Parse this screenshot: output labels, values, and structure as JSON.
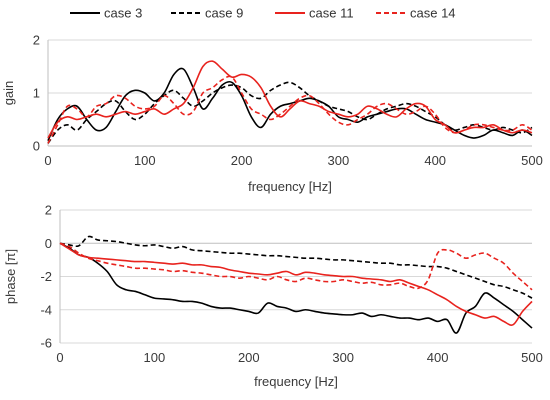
{
  "chart_data": [
    {
      "type": "line",
      "xlabel": "frequency [Hz]",
      "ylabel": "gain",
      "xlim": [
        0,
        500
      ],
      "ylim": [
        0,
        2
      ],
      "xticks": [
        0,
        100,
        200,
        300,
        400,
        500
      ],
      "yticks": [
        0,
        1,
        2
      ],
      "grid": "horizontal",
      "legend": "top",
      "series": [
        {
          "name": "case 3",
          "color": "#000000",
          "dash": "solid",
          "x": [
            0,
            10,
            20,
            30,
            40,
            50,
            60,
            70,
            80,
            90,
            100,
            110,
            120,
            130,
            140,
            150,
            160,
            170,
            180,
            190,
            200,
            210,
            220,
            230,
            240,
            250,
            260,
            270,
            280,
            290,
            300,
            310,
            320,
            330,
            340,
            350,
            360,
            370,
            380,
            390,
            400,
            410,
            420,
            430,
            440,
            450,
            460,
            470,
            480,
            490,
            500
          ],
          "y": [
            0.1,
            0.5,
            0.7,
            0.75,
            0.5,
            0.3,
            0.35,
            0.65,
            0.95,
            1.05,
            1.0,
            0.85,
            1.0,
            1.35,
            1.45,
            1.1,
            0.7,
            0.9,
            1.15,
            1.2,
            0.95,
            0.55,
            0.35,
            0.6,
            0.75,
            0.8,
            0.85,
            0.9,
            0.85,
            0.75,
            0.55,
            0.5,
            0.45,
            0.55,
            0.6,
            0.65,
            0.7,
            0.7,
            0.6,
            0.5,
            0.45,
            0.4,
            0.3,
            0.2,
            0.15,
            0.2,
            0.3,
            0.25,
            0.2,
            0.3,
            0.2
          ]
        },
        {
          "name": "case 9",
          "color": "#000000",
          "dash": "dashed",
          "x": [
            0,
            10,
            20,
            30,
            40,
            50,
            60,
            70,
            80,
            90,
            100,
            110,
            120,
            130,
            140,
            150,
            160,
            170,
            180,
            190,
            200,
            210,
            220,
            230,
            240,
            250,
            260,
            270,
            280,
            290,
            300,
            310,
            320,
            330,
            340,
            350,
            360,
            370,
            380,
            390,
            400,
            410,
            420,
            430,
            440,
            450,
            460,
            470,
            480,
            490,
            500
          ],
          "y": [
            0.05,
            0.3,
            0.4,
            0.3,
            0.5,
            0.65,
            0.8,
            0.85,
            0.65,
            0.5,
            0.6,
            0.8,
            0.95,
            1.05,
            0.9,
            0.75,
            0.85,
            1.0,
            1.1,
            1.15,
            1.1,
            0.95,
            0.9,
            1.05,
            1.15,
            1.2,
            1.1,
            0.95,
            0.85,
            0.75,
            0.7,
            0.65,
            0.55,
            0.5,
            0.6,
            0.7,
            0.75,
            0.8,
            0.75,
            0.65,
            0.55,
            0.4,
            0.3,
            0.35,
            0.4,
            0.35,
            0.3,
            0.35,
            0.3,
            0.25,
            0.35
          ]
        },
        {
          "name": "case 11",
          "color": "#e8231e",
          "dash": "solid",
          "x": [
            0,
            10,
            20,
            30,
            40,
            50,
            60,
            70,
            80,
            90,
            100,
            110,
            120,
            130,
            140,
            150,
            160,
            170,
            180,
            190,
            200,
            210,
            220,
            230,
            240,
            250,
            260,
            270,
            280,
            290,
            300,
            310,
            320,
            330,
            340,
            350,
            360,
            370,
            380,
            390,
            400,
            410,
            420,
            430,
            440,
            450,
            460,
            470,
            480,
            490,
            500
          ],
          "y": [
            0.15,
            0.45,
            0.55,
            0.5,
            0.55,
            0.6,
            0.55,
            0.6,
            0.65,
            0.6,
            0.65,
            0.7,
            0.6,
            0.7,
            0.8,
            1.1,
            1.5,
            1.6,
            1.45,
            1.3,
            1.35,
            1.3,
            1.1,
            0.75,
            0.55,
            0.7,
            0.85,
            0.8,
            0.75,
            0.65,
            0.6,
            0.55,
            0.6,
            0.75,
            0.7,
            0.6,
            0.55,
            0.7,
            0.8,
            0.75,
            0.5,
            0.4,
            0.25,
            0.3,
            0.35,
            0.35,
            0.4,
            0.3,
            0.25,
            0.3,
            0.25
          ]
        },
        {
          "name": "case 14",
          "color": "#e8231e",
          "dash": "dashed",
          "x": [
            0,
            10,
            20,
            30,
            40,
            50,
            60,
            70,
            80,
            90,
            100,
            110,
            120,
            130,
            140,
            150,
            160,
            170,
            180,
            190,
            200,
            210,
            220,
            230,
            240,
            250,
            260,
            270,
            280,
            290,
            300,
            310,
            320,
            330,
            340,
            350,
            360,
            370,
            380,
            390,
            400,
            410,
            420,
            430,
            440,
            450,
            460,
            470,
            480,
            490,
            500
          ],
          "y": [
            0.05,
            0.4,
            0.75,
            0.7,
            0.55,
            0.75,
            0.8,
            0.95,
            0.9,
            0.75,
            0.7,
            0.75,
            0.95,
            0.8,
            0.6,
            0.65,
            1.0,
            1.1,
            1.25,
            1.3,
            1.0,
            0.7,
            0.6,
            0.5,
            0.6,
            0.75,
            0.9,
            0.95,
            0.8,
            0.6,
            0.45,
            0.4,
            0.5,
            0.6,
            0.75,
            0.8,
            0.7,
            0.6,
            0.65,
            0.75,
            0.6,
            0.35,
            0.25,
            0.3,
            0.4,
            0.4,
            0.35,
            0.3,
            0.3,
            0.4,
            0.3
          ]
        }
      ]
    },
    {
      "type": "line",
      "xlabel": "frequency [Hz]",
      "ylabel": "phase [π]",
      "xlim": [
        0,
        500
      ],
      "ylim": [
        -6,
        2
      ],
      "xticks": [
        0,
        100,
        200,
        300,
        400,
        500
      ],
      "yticks": [
        -6,
        -4,
        -2,
        0,
        2
      ],
      "grid": "horizontal",
      "series": [
        {
          "name": "case 3",
          "color": "#000000",
          "dash": "solid",
          "x": [
            0,
            10,
            20,
            30,
            40,
            50,
            60,
            70,
            80,
            90,
            100,
            110,
            120,
            130,
            140,
            150,
            160,
            170,
            180,
            190,
            200,
            210,
            220,
            230,
            240,
            250,
            260,
            270,
            280,
            290,
            300,
            310,
            320,
            330,
            340,
            350,
            360,
            370,
            380,
            390,
            400,
            410,
            420,
            430,
            440,
            450,
            460,
            470,
            480,
            490,
            500
          ],
          "y": [
            0,
            -0.3,
            -0.7,
            -0.85,
            -1.2,
            -1.7,
            -2.5,
            -2.8,
            -2.9,
            -3.1,
            -3.3,
            -3.35,
            -3.4,
            -3.5,
            -3.5,
            -3.6,
            -3.8,
            -3.9,
            -3.9,
            -4.0,
            -4.1,
            -4.2,
            -3.6,
            -3.8,
            -3.9,
            -4.1,
            -4.0,
            -4.1,
            -4.2,
            -4.25,
            -4.3,
            -4.3,
            -4.2,
            -4.4,
            -4.3,
            -4.4,
            -4.5,
            -4.5,
            -4.6,
            -4.5,
            -4.7,
            -4.6,
            -5.4,
            -4.2,
            -3.8,
            -3.0,
            -3.3,
            -3.7,
            -4.1,
            -4.6,
            -5.1
          ]
        },
        {
          "name": "case 9",
          "color": "#000000",
          "dash": "dashed",
          "x": [
            0,
            10,
            20,
            30,
            40,
            50,
            60,
            70,
            80,
            90,
            100,
            110,
            120,
            130,
            140,
            150,
            160,
            170,
            180,
            190,
            200,
            210,
            220,
            230,
            240,
            250,
            260,
            270,
            280,
            290,
            300,
            310,
            320,
            330,
            340,
            350,
            360,
            370,
            380,
            390,
            400,
            410,
            420,
            430,
            440,
            450,
            460,
            470,
            480,
            490,
            500
          ],
          "y": [
            0,
            -0.1,
            -0.15,
            0.4,
            0.2,
            0.15,
            0.1,
            0.0,
            -0.1,
            -0.15,
            -0.1,
            -0.2,
            -0.3,
            -0.2,
            -0.4,
            -0.45,
            -0.5,
            -0.55,
            -0.6,
            -0.6,
            -0.65,
            -0.7,
            -0.75,
            -0.75,
            -0.8,
            -0.85,
            -0.9,
            -0.9,
            -0.95,
            -1.0,
            -1.0,
            -1.05,
            -1.1,
            -1.15,
            -1.2,
            -1.2,
            -1.3,
            -1.3,
            -1.35,
            -1.4,
            -1.4,
            -1.5,
            -1.7,
            -1.9,
            -2.1,
            -2.3,
            -2.5,
            -2.6,
            -2.8,
            -3.0,
            -3.3
          ]
        },
        {
          "name": "case 11",
          "color": "#e8231e",
          "dash": "solid",
          "x": [
            0,
            10,
            20,
            30,
            40,
            50,
            60,
            70,
            80,
            90,
            100,
            110,
            120,
            130,
            140,
            150,
            160,
            170,
            180,
            190,
            200,
            210,
            220,
            230,
            240,
            250,
            260,
            270,
            280,
            290,
            300,
            310,
            320,
            330,
            340,
            350,
            360,
            370,
            380,
            390,
            400,
            410,
            420,
            430,
            440,
            450,
            460,
            470,
            480,
            490,
            500
          ],
          "y": [
            0,
            -0.35,
            -0.7,
            -0.85,
            -0.9,
            -0.95,
            -1.0,
            -1.05,
            -1.1,
            -1.1,
            -1.15,
            -1.2,
            -1.25,
            -1.2,
            -1.3,
            -1.3,
            -1.4,
            -1.45,
            -1.6,
            -1.7,
            -1.8,
            -1.85,
            -1.9,
            -1.8,
            -1.7,
            -1.9,
            -1.75,
            -1.8,
            -1.9,
            -1.95,
            -2.0,
            -2.0,
            -2.1,
            -2.15,
            -2.2,
            -2.3,
            -2.2,
            -2.4,
            -2.6,
            -2.8,
            -3.1,
            -3.4,
            -3.8,
            -4.1,
            -4.3,
            -4.5,
            -4.4,
            -4.7,
            -4.9,
            -4.1,
            -3.5
          ]
        },
        {
          "name": "case 14",
          "color": "#e8231e",
          "dash": "dashed",
          "x": [
            0,
            10,
            20,
            30,
            40,
            50,
            60,
            70,
            80,
            90,
            100,
            110,
            120,
            130,
            140,
            150,
            160,
            170,
            180,
            190,
            200,
            210,
            220,
            230,
            240,
            250,
            260,
            270,
            280,
            290,
            300,
            310,
            320,
            330,
            340,
            350,
            360,
            370,
            380,
            390,
            400,
            410,
            420,
            430,
            440,
            450,
            460,
            470,
            480,
            490,
            500
          ],
          "y": [
            0,
            -0.2,
            -0.6,
            -0.9,
            -1.05,
            -1.2,
            -1.3,
            -1.4,
            -1.5,
            -1.5,
            -1.55,
            -1.6,
            -1.7,
            -1.65,
            -1.75,
            -1.8,
            -1.9,
            -2.0,
            -2.0,
            -2.1,
            -2.0,
            -2.1,
            -2.2,
            -2.0,
            -2.2,
            -2.3,
            -2.1,
            -2.2,
            -2.3,
            -2.3,
            -2.2,
            -2.3,
            -2.4,
            -2.35,
            -2.5,
            -2.5,
            -2.4,
            -2.6,
            -2.7,
            -2.2,
            -0.6,
            -0.4,
            -0.6,
            -0.9,
            -0.7,
            -0.6,
            -0.9,
            -1.2,
            -1.8,
            -2.3,
            -2.8
          ]
        }
      ]
    }
  ]
}
